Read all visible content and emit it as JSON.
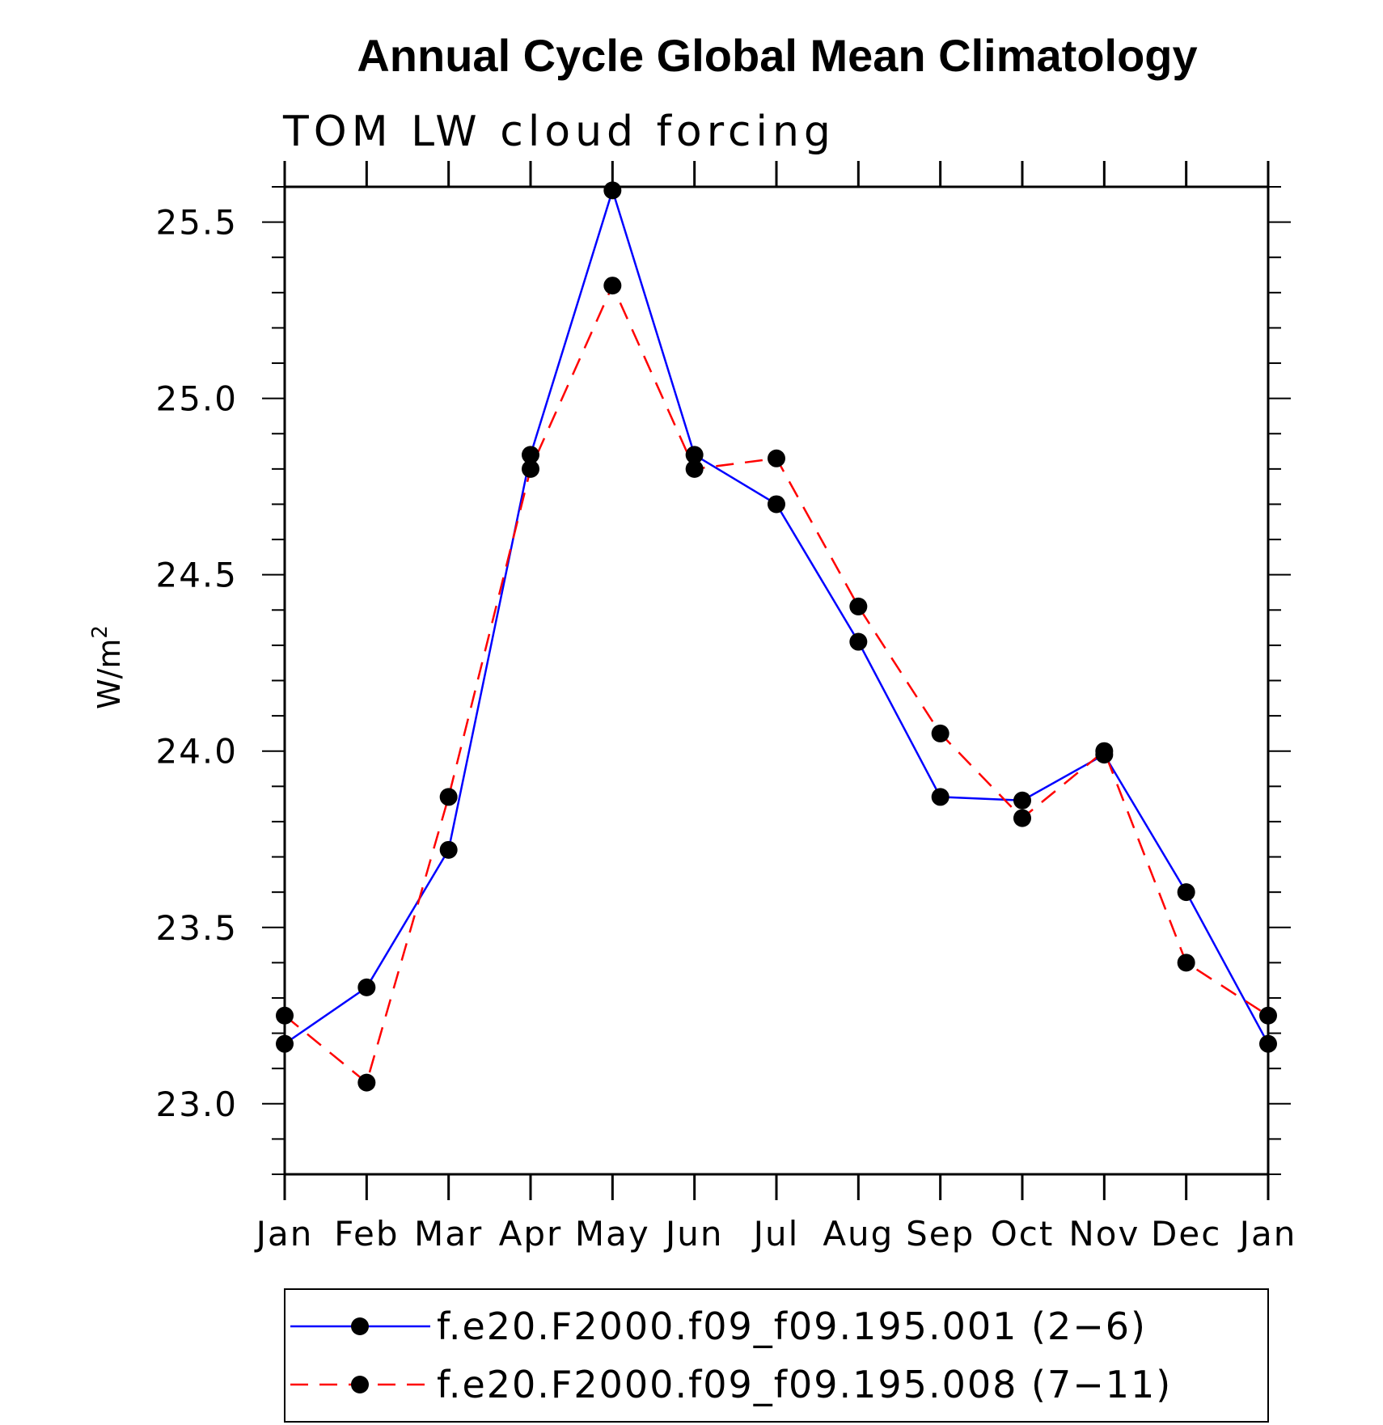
{
  "chart_data": {
    "type": "line",
    "title": "Annual Cycle Global Mean Climatology",
    "subtitle": "TOM LW cloud forcing",
    "ylabel": "W/m",
    "ylabel_superscript": "2",
    "categories": [
      "Jan",
      "Feb",
      "Mar",
      "Apr",
      "May",
      "Jun",
      "Jul",
      "Aug",
      "Sep",
      "Oct",
      "Nov",
      "Dec",
      "Jan"
    ],
    "ylim": [
      22.8,
      25.6
    ],
    "yticks": [
      "23.0",
      "23.5",
      "24.0",
      "24.5",
      "25.0",
      "25.5"
    ],
    "series": [
      {
        "name": "f.e20.F2000.f09_f09.195.001 (2−6)",
        "color": "#0000ff",
        "dash": "solid",
        "marker": "filled-circle",
        "values": [
          23.17,
          23.33,
          23.72,
          24.84,
          25.59,
          24.84,
          24.7,
          24.31,
          23.87,
          23.86,
          23.99,
          23.6,
          23.17
        ]
      },
      {
        "name": "f.e20.F2000.f09_f09.195.008 (7−11)",
        "color": "#ff0000",
        "dash": "dashed",
        "marker": "filled-circle",
        "values": [
          23.25,
          23.06,
          23.87,
          24.8,
          25.32,
          24.8,
          24.83,
          24.41,
          24.05,
          23.81,
          24.0,
          23.4,
          23.25
        ]
      }
    ],
    "grid": false,
    "legend_position": "bottom"
  }
}
